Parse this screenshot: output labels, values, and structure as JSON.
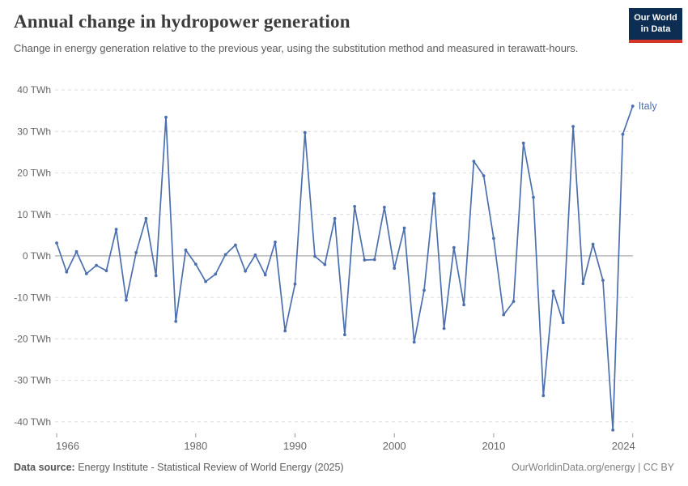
{
  "header": {
    "title": "Annual change in hydropower generation",
    "subtitle": "Change in energy generation relative to the previous year, using the substitution method and measured in terawatt-hours.",
    "logo": {
      "line1": "Our World",
      "line2": "in Data"
    }
  },
  "chart_data": {
    "type": "line",
    "title": "Annual change in hydropower generation",
    "xlabel": "",
    "ylabel": "TWh",
    "ylim": [
      -40,
      40
    ],
    "yticks": [
      40,
      30,
      20,
      10,
      0,
      -10,
      -20,
      -30,
      -40
    ],
    "ytick_suffix": " TWh",
    "xticks": [
      1966,
      1980,
      1990,
      2000,
      2010,
      2024
    ],
    "grid": "horizontal-dashed",
    "legend_position": "end-of-line-label",
    "series": [
      {
        "name": "Italy",
        "color": "#4C6FAE",
        "x": [
          1966,
          1967,
          1968,
          1969,
          1970,
          1971,
          1972,
          1973,
          1974,
          1975,
          1976,
          1977,
          1978,
          1979,
          1980,
          1981,
          1982,
          1983,
          1984,
          1985,
          1986,
          1987,
          1988,
          1989,
          1990,
          1991,
          1992,
          1993,
          1994,
          1995,
          1996,
          1997,
          1998,
          1999,
          2000,
          2001,
          2002,
          2003,
          2004,
          2005,
          2006,
          2007,
          2008,
          2009,
          2010,
          2011,
          2012,
          2013,
          2014,
          2015,
          2016,
          2017,
          2018,
          2019,
          2020,
          2021,
          2022,
          2023,
          2024
        ],
        "values": [
          3.1,
          -3.9,
          1.0,
          -4.3,
          -2.3,
          -3.6,
          6.4,
          -10.7,
          0.8,
          9.0,
          -4.8,
          33.4,
          -15.8,
          1.4,
          -2.0,
          -6.2,
          -4.4,
          0.3,
          2.6,
          -3.7,
          0.2,
          -4.6,
          3.3,
          -18.1,
          -6.8,
          29.7,
          -0.1,
          -2.1,
          9.0,
          -19.0,
          11.9,
          -1.0,
          -0.9,
          11.7,
          -3.0,
          6.7,
          -20.8,
          -8.3,
          15.0,
          -17.5,
          2.0,
          -11.8,
          22.8,
          19.3,
          4.2,
          -14.2,
          -11.0,
          27.2,
          14.1,
          -33.7,
          -8.5,
          -16.1,
          31.2,
          -6.7,
          2.8,
          -5.9,
          -42.0,
          29.3,
          36.1
        ]
      }
    ]
  },
  "footer": {
    "source_label": "Data source:",
    "source_text": " Energy Institute - Statistical Review of World Energy (2025)",
    "credit": "OurWorldinData.org/energy | CC BY"
  },
  "colors": {
    "line": "#4C6FAE",
    "grid": "#dcdcdc",
    "zero_line": "#ababab",
    "tick": "#999999",
    "axis_text": "#666666",
    "title": "#3b3b3b",
    "subtitle": "#5b5b5b",
    "logo_bg": "#0d2e52",
    "logo_accent": "#d6362a"
  }
}
